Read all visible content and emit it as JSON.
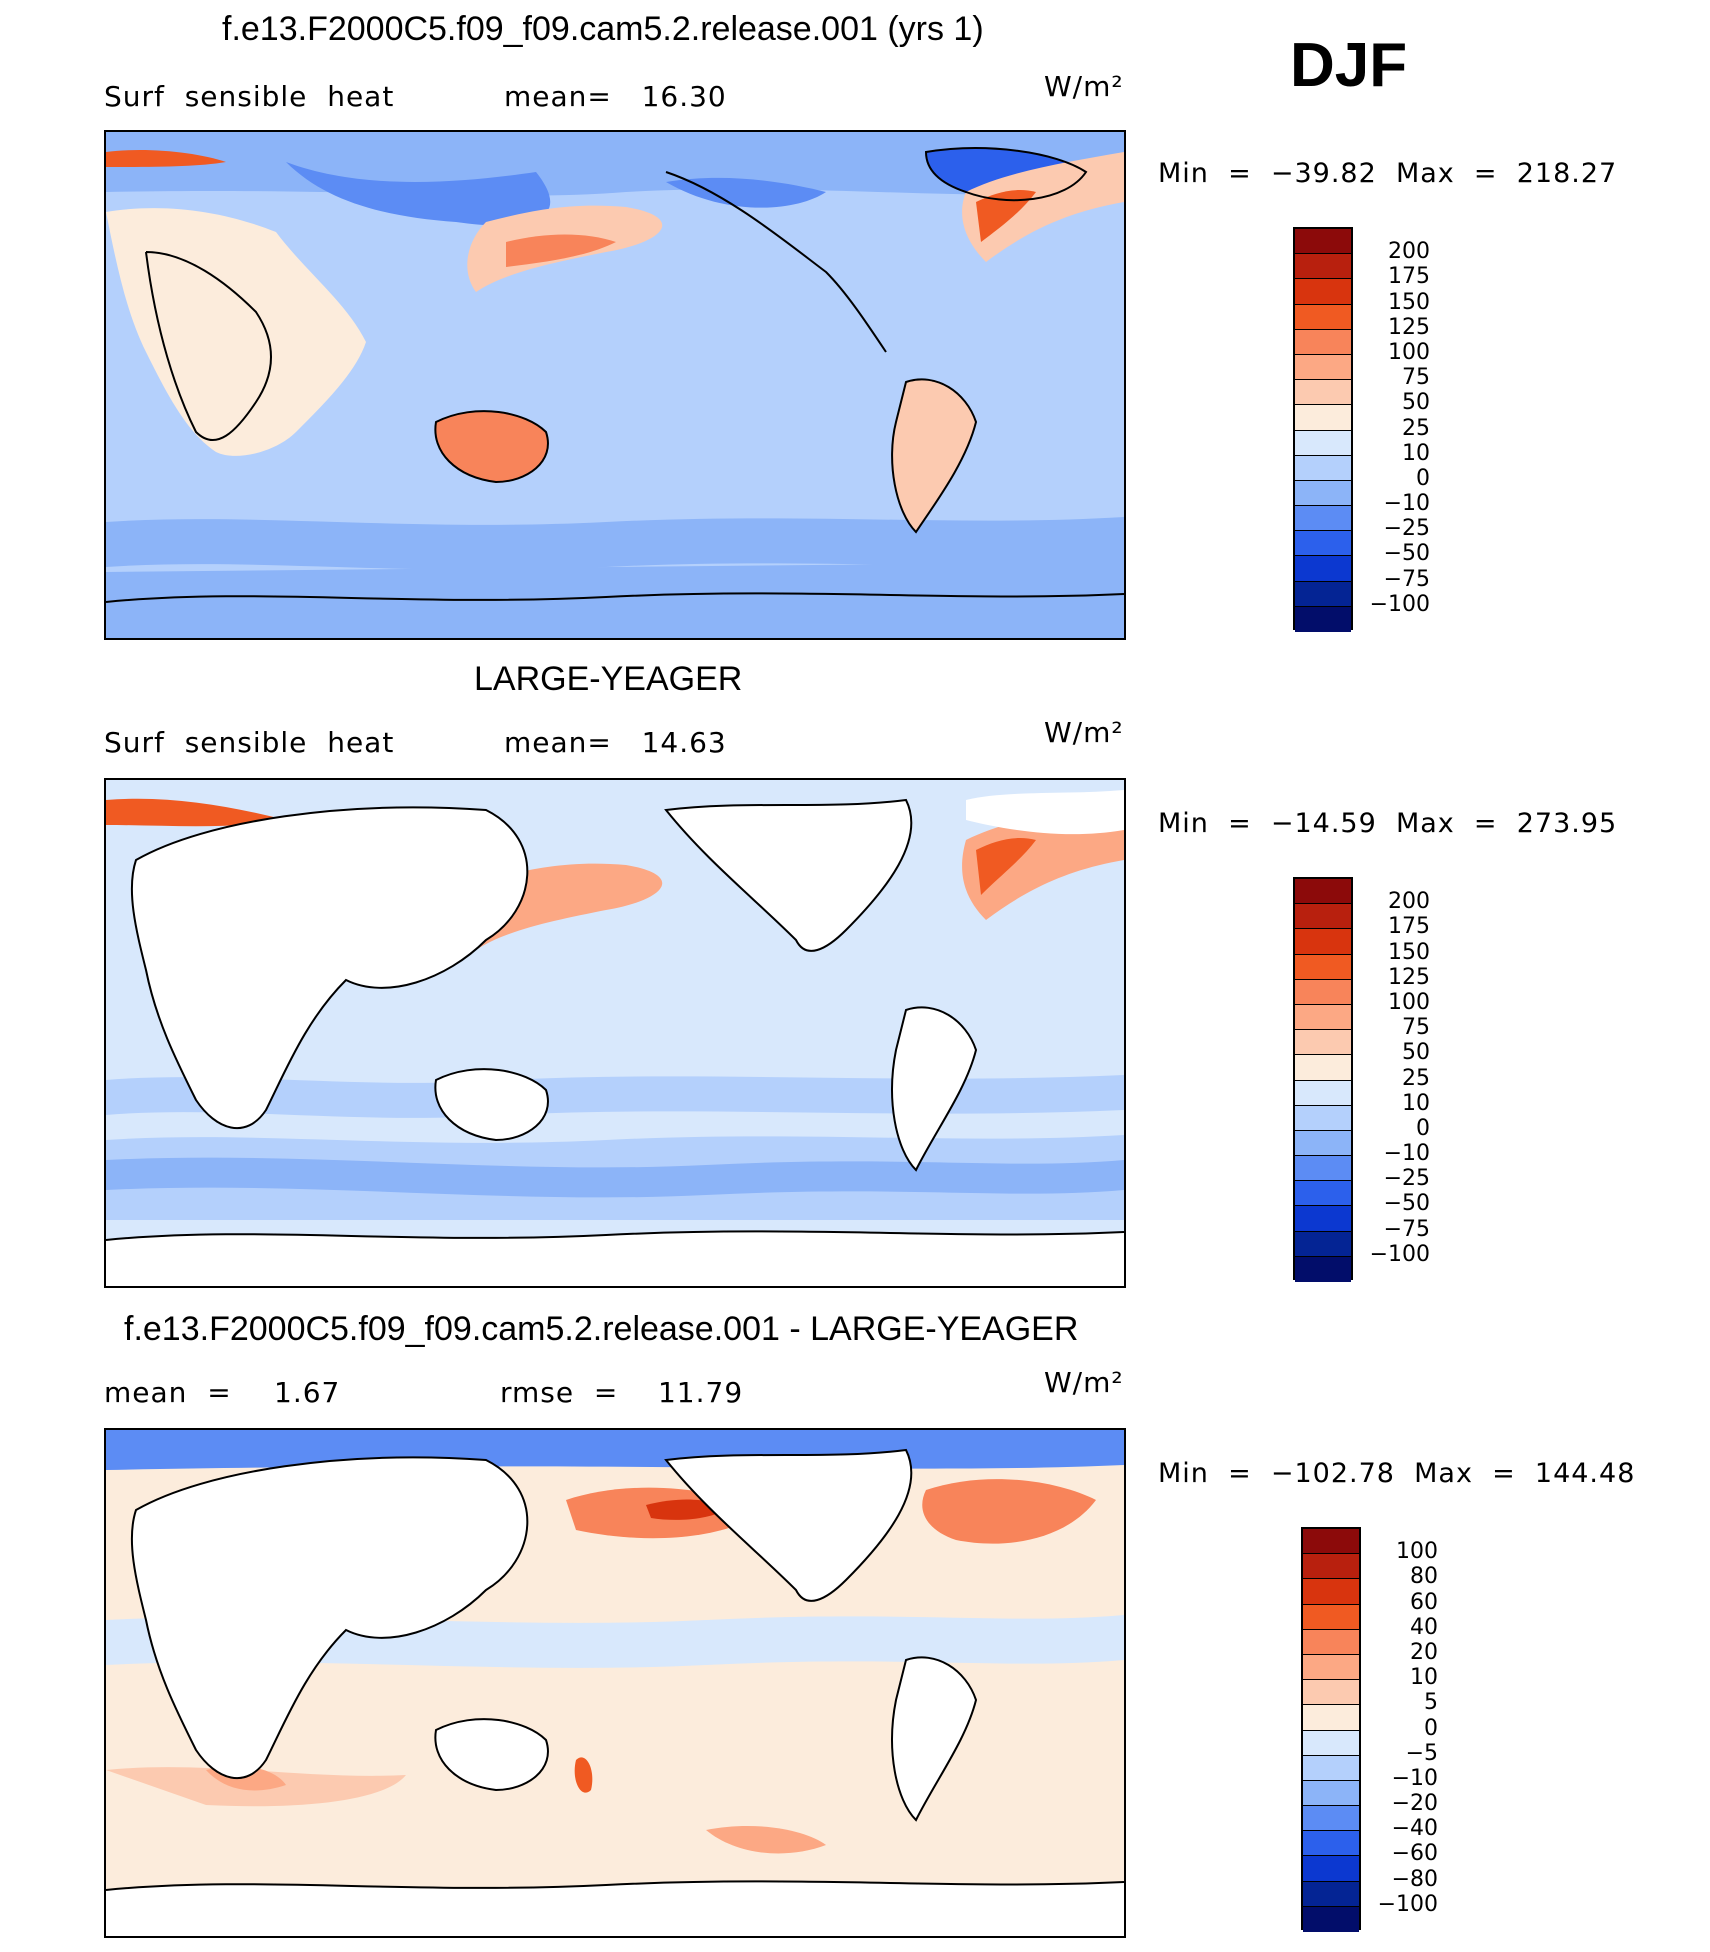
{
  "season": "DJF",
  "units": "W/m²",
  "panels": [
    {
      "title": "f.e13.F2000C5.f09_f09.cam5.2.release.001 (yrs 1)",
      "var_label": "Surf  sensible  heat",
      "stat1": "mean=   16.30",
      "stat2": "",
      "minmax": "Min  =  −39.82  Max  =  218.27",
      "levels": [
        "200",
        "175",
        "150",
        "125",
        "100",
        "75",
        "50",
        "25",
        "10",
        "0",
        "−10",
        "−25",
        "−50",
        "−75",
        "−100"
      ],
      "colors": [
        "#8c0a0a",
        "#b8200e",
        "#d8340e",
        "#f05a22",
        "#f8845a",
        "#fca884",
        "#fccab0",
        "#fcecdc",
        "#d8e8fc",
        "#b4d0fc",
        "#8cb4f8",
        "#5c8cf4",
        "#2c60ec",
        "#0c38d0",
        "#042494",
        "#020d6a"
      ]
    },
    {
      "title": "LARGE-YEAGER",
      "var_label": "Surf  sensible  heat",
      "stat1": "mean=   14.63",
      "stat2": "",
      "minmax": "Min  =  −14.59  Max  =  273.95",
      "levels": [
        "200",
        "175",
        "150",
        "125",
        "100",
        "75",
        "50",
        "25",
        "10",
        "0",
        "−10",
        "−25",
        "−50",
        "−75",
        "−100"
      ],
      "colors": [
        "#8c0a0a",
        "#b8200e",
        "#d8340e",
        "#f05a22",
        "#f8845a",
        "#fca884",
        "#fccab0",
        "#fcecdc",
        "#d8e8fc",
        "#b4d0fc",
        "#8cb4f8",
        "#5c8cf4",
        "#2c60ec",
        "#0c38d0",
        "#042494",
        "#020d6a"
      ]
    },
    {
      "title": "f.e13.F2000C5.f09_f09.cam5.2.release.001 - LARGE-YEAGER",
      "var_label": "mean  =",
      "stat1": "1.67",
      "stat2": "rmse  =    11.79",
      "minmax": "Min  =  −102.78  Max  =  144.48",
      "levels": [
        "100",
        "80",
        "60",
        "40",
        "20",
        "10",
        "5",
        "0",
        "−5",
        "−10",
        "−20",
        "−40",
        "−60",
        "−80",
        "−100"
      ],
      "colors": [
        "#8c0a0a",
        "#b8200e",
        "#d8340e",
        "#f05a22",
        "#f8845a",
        "#fca884",
        "#fccab0",
        "#fcecdc",
        "#d8e8fc",
        "#b4d0fc",
        "#8cb4f8",
        "#5c8cf4",
        "#2c60ec",
        "#0c38d0",
        "#042494",
        "#020d6a"
      ]
    }
  ]
}
